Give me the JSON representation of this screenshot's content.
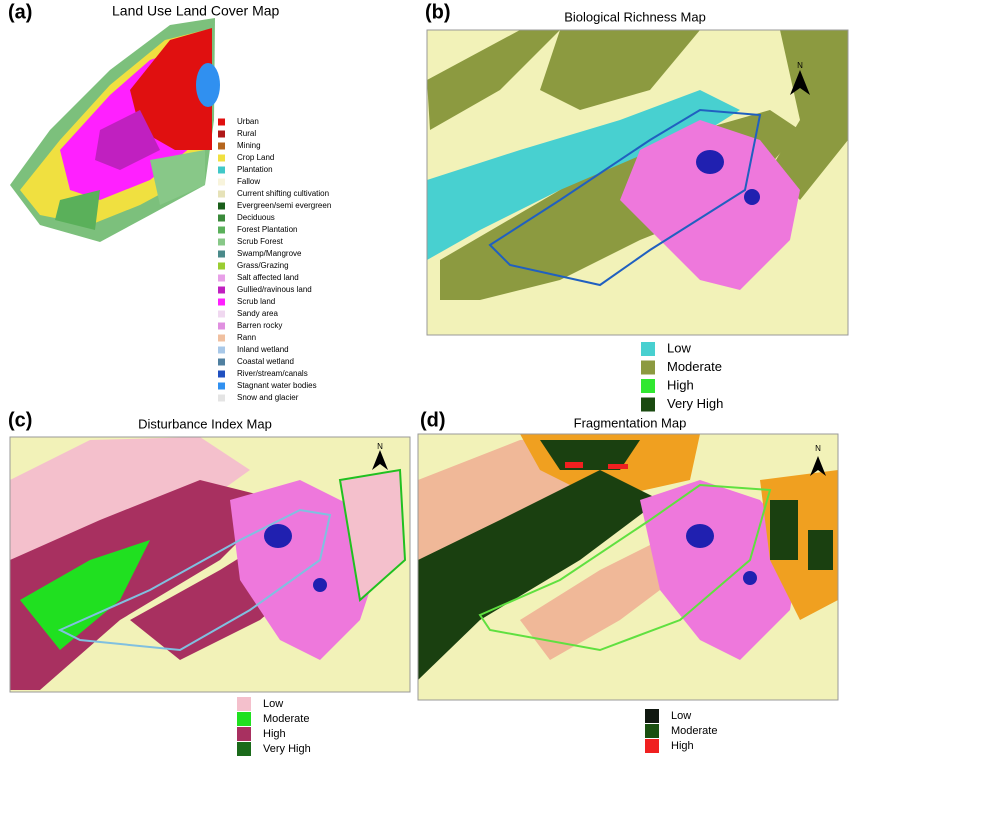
{
  "panels": [
    {
      "label": "(a)",
      "title": "Land Use Land Cover Map",
      "legend": [
        {
          "label": "Urban",
          "color": "#e01010"
        },
        {
          "label": "Rural",
          "color": "#b01818"
        },
        {
          "label": "Mining",
          "color": "#b5651d"
        },
        {
          "label": "Crop Land",
          "color": "#f0e040"
        },
        {
          "label": "Plantation",
          "color": "#40c8c8"
        },
        {
          "label": "Fallow",
          "color": "#f8f4dc"
        },
        {
          "label": "Current shifting cultivation",
          "color": "#e6e2b8"
        },
        {
          "label": "Evergreen/semi evergreen",
          "color": "#1a5e1a"
        },
        {
          "label": "Deciduous",
          "color": "#3a8a3a"
        },
        {
          "label": "Forest Plantation",
          "color": "#5ab05a"
        },
        {
          "label": "Scrub Forest",
          "color": "#88c888"
        },
        {
          "label": "Swamp/Mangrove",
          "color": "#4a8a8a"
        },
        {
          "label": "Grass/Grazing",
          "color": "#9acd32"
        },
        {
          "label": "Salt affected land",
          "color": "#e8a0e8"
        },
        {
          "label": "Gullied/ravinous land",
          "color": "#c020c0"
        },
        {
          "label": "Scrub land",
          "color": "#ff20ff"
        },
        {
          "label": "Sandy area",
          "color": "#f0d8f0"
        },
        {
          "label": "Barren rocky",
          "color": "#e090e0"
        },
        {
          "label": "Rann",
          "color": "#f0c0a0"
        },
        {
          "label": "Inland  wetland",
          "color": "#a8c8e8"
        },
        {
          "label": "Coastal wetland",
          "color": "#5080a0"
        },
        {
          "label": "River/stream/canals",
          "color": "#2050c0"
        },
        {
          "label": "Stagnant water bodies",
          "color": "#3090f0"
        },
        {
          "label": "Snow and glacier",
          "color": "#e4e4e4"
        }
      ]
    },
    {
      "label": "(b)",
      "title": "Biological Richness Map",
      "legend": [
        {
          "label": "Low",
          "color": "#48d0d0"
        },
        {
          "label": "Moderate",
          "color": "#8c9a40"
        },
        {
          "label": "High",
          "color": "#30e830"
        },
        {
          "label": "Very High",
          "color": "#1a4a10"
        }
      ]
    },
    {
      "label": "(c)",
      "title": "Disturbance Index Map",
      "legend": [
        {
          "label": "Low",
          "color": "#f4c0cc"
        },
        {
          "label": "Moderate",
          "color": "#20e020"
        },
        {
          "label": "High",
          "color": "#a83060"
        },
        {
          "label": "Very High",
          "color": "#1a6a1a"
        }
      ]
    },
    {
      "label": "(d)",
      "title": "Fragmentation Map",
      "legend": [
        {
          "label": "Low",
          "color": "#101810"
        },
        {
          "label": "Moderate",
          "color": "#1a5010"
        },
        {
          "label": "High",
          "color": "#f02020"
        }
      ]
    }
  ],
  "north": "N"
}
